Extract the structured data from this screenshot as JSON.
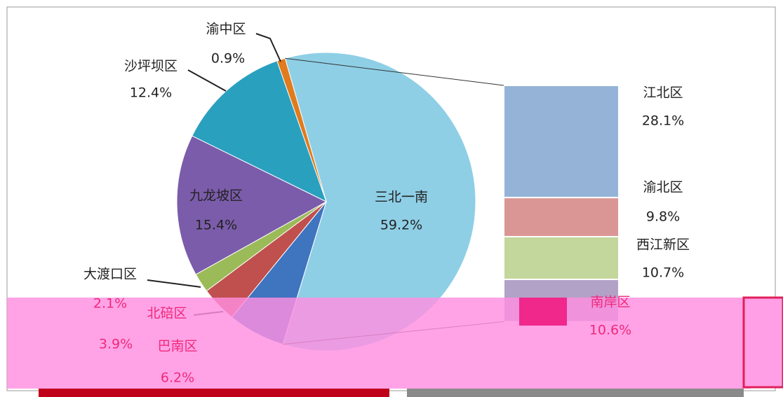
{
  "chart_data": {
    "type": "pie",
    "categories": [
      "三北一南",
      "巴南区",
      "北碚区",
      "大渡口区",
      "九龙坡区",
      "沙坪坝区",
      "渝中区"
    ],
    "values": [
      59.2,
      6.2,
      3.9,
      2.1,
      15.4,
      12.4,
      0.9
    ],
    "value_labels": [
      "59.2%",
      "6.2%",
      "3.9%",
      "2.1%",
      "15.4%",
      "12.4%",
      "0.9%"
    ],
    "colors": [
      "#8ecfe6",
      "#3f74bf",
      "#c0504d",
      "#9bbb59",
      "#7b5caa",
      "#2aa0bf",
      "#e07b1e"
    ],
    "bar": {
      "categories": [
        "江北区",
        "渝北区",
        "西江新区",
        "南岸区"
      ],
      "values": [
        28.1,
        9.8,
        10.7,
        10.6
      ],
      "value_labels": [
        "28.1%",
        "9.8%",
        "10.7%",
        "10.6%"
      ],
      "colors": [
        "#95b3d7",
        "#d99694",
        "#c3d69b",
        "#b3a2c7"
      ]
    }
  }
}
